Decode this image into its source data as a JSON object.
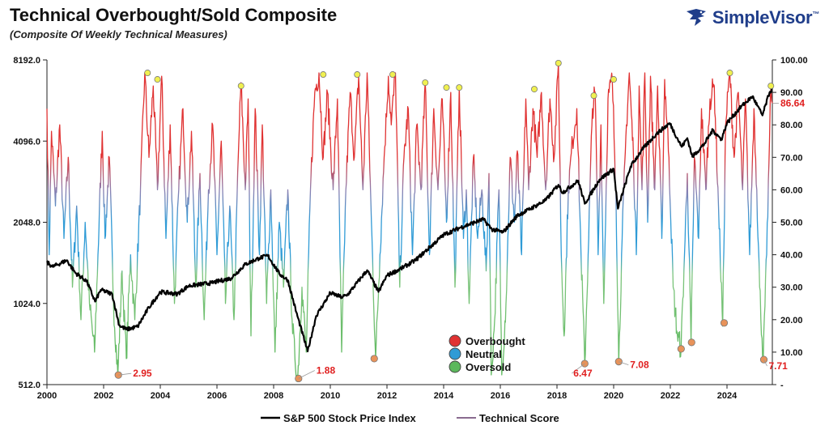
{
  "header": {
    "title": "Technical Overbought/Sold Composite",
    "subtitle": "(Composite Of Weekly Technical Measures)",
    "brand": "SimpleVisor",
    "brand_mark": "™"
  },
  "colors": {
    "overbought": "#e03232",
    "neutral": "#2f9bd6",
    "oversold": "#5cb85c",
    "sp500": "#000000",
    "peak_marker": "#f0f050",
    "trough_marker": "#e8935a",
    "callout_text": "#e02020",
    "brand": "#1f3d8a"
  },
  "chart_data": {
    "type": "line",
    "x_ticks": [
      "2000",
      "2002",
      "2004",
      "2006",
      "2008",
      "2010",
      "2012",
      "2014",
      "2016",
      "2018",
      "2020",
      "2022",
      "2024"
    ],
    "x_range": [
      2000,
      2025.6
    ],
    "y_left": {
      "label": "S&P 500 Stock Price Index",
      "scale": "log2",
      "ticks": [
        "512.0",
        "1024.0",
        "2048.0",
        "4096.0",
        "8192.0"
      ],
      "range": [
        512,
        8192
      ]
    },
    "y_right": {
      "label": "Technical Score",
      "ticks": [
        "-",
        "10.00",
        "20.00",
        "30.00",
        "40.00",
        "50.00",
        "60.00",
        "70.00",
        "80.00",
        "90.00",
        "100.00"
      ],
      "range": [
        0,
        100
      ]
    },
    "grid": false,
    "legend": {
      "position": "bottom-center",
      "items": [
        "S&P 500 Stock Price Index",
        "Technical Score"
      ]
    },
    "zone_legend": {
      "position": "center-bottom",
      "items": [
        {
          "label": "Overbought",
          "color": "#e03232"
        },
        {
          "label": "Neutral",
          "color": "#2f9bd6"
        },
        {
          "label": "Oversold",
          "color": "#5cb85c"
        }
      ]
    },
    "sp500_anchors": [
      [
        2000.0,
        1455
      ],
      [
        2000.2,
        1400
      ],
      [
        2000.7,
        1480
      ],
      [
        2001.0,
        1330
      ],
      [
        2001.4,
        1240
      ],
      [
        2001.7,
        1040
      ],
      [
        2001.9,
        1150
      ],
      [
        2002.3,
        1110
      ],
      [
        2002.55,
        850
      ],
      [
        2002.8,
        820
      ],
      [
        2003.2,
        840
      ],
      [
        2003.6,
        990
      ],
      [
        2004.0,
        1130
      ],
      [
        2004.6,
        1110
      ],
      [
        2005.0,
        1190
      ],
      [
        2005.8,
        1220
      ],
      [
        2006.5,
        1270
      ],
      [
        2007.0,
        1430
      ],
      [
        2007.5,
        1510
      ],
      [
        2007.8,
        1540
      ],
      [
        2008.2,
        1320
      ],
      [
        2008.5,
        1250
      ],
      [
        2008.8,
        950
      ],
      [
        2009.2,
        680
      ],
      [
        2009.5,
        920
      ],
      [
        2010.0,
        1120
      ],
      [
        2010.4,
        1080
      ],
      [
        2010.6,
        1100
      ],
      [
        2011.3,
        1360
      ],
      [
        2011.7,
        1130
      ],
      [
        2012.0,
        1300
      ],
      [
        2012.5,
        1380
      ],
      [
        2013.0,
        1480
      ],
      [
        2013.5,
        1650
      ],
      [
        2014.0,
        1840
      ],
      [
        2014.6,
        1960
      ],
      [
        2015.4,
        2100
      ],
      [
        2015.7,
        1930
      ],
      [
        2016.1,
        1880
      ],
      [
        2016.6,
        2170
      ],
      [
        2017.0,
        2280
      ],
      [
        2017.6,
        2470
      ],
      [
        2018.05,
        2820
      ],
      [
        2018.2,
        2640
      ],
      [
        2018.75,
        2920
      ],
      [
        2018.98,
        2400
      ],
      [
        2019.5,
        2950
      ],
      [
        2020.0,
        3230
      ],
      [
        2020.15,
        2300
      ],
      [
        2020.6,
        3300
      ],
      [
        2021.0,
        3800
      ],
      [
        2021.5,
        4350
      ],
      [
        2021.98,
        4770
      ],
      [
        2022.4,
        3900
      ],
      [
        2022.6,
        4200
      ],
      [
        2022.78,
        3580
      ],
      [
        2023.2,
        4000
      ],
      [
        2023.5,
        4500
      ],
      [
        2023.8,
        4150
      ],
      [
        2024.0,
        4780
      ],
      [
        2024.5,
        5500
      ],
      [
        2024.9,
        6000
      ],
      [
        2025.25,
        5100
      ],
      [
        2025.5,
        6200
      ],
      [
        2025.6,
        6400
      ]
    ],
    "technical_score_anchors": [
      [
        2000.0,
        85
      ],
      [
        2000.08,
        40
      ],
      [
        2000.16,
        78
      ],
      [
        2000.3,
        55
      ],
      [
        2000.45,
        80
      ],
      [
        2000.6,
        45
      ],
      [
        2000.75,
        70
      ],
      [
        2000.9,
        30
      ],
      [
        2001.05,
        55
      ],
      [
        2001.2,
        20
      ],
      [
        2001.35,
        50
      ],
      [
        2001.5,
        25
      ],
      [
        2001.68,
        10
      ],
      [
        2001.8,
        40
      ],
      [
        2001.95,
        78
      ],
      [
        2002.05,
        45
      ],
      [
        2002.2,
        70
      ],
      [
        2002.35,
        25
      ],
      [
        2002.5,
        2.95
      ],
      [
        2002.65,
        35
      ],
      [
        2002.8,
        8
      ],
      [
        2002.95,
        40
      ],
      [
        2003.1,
        20
      ],
      [
        2003.3,
        60
      ],
      [
        2003.45,
        96
      ],
      [
        2003.6,
        70
      ],
      [
        2003.75,
        92
      ],
      [
        2003.9,
        60
      ],
      [
        2004.05,
        95
      ],
      [
        2004.2,
        45
      ],
      [
        2004.35,
        80
      ],
      [
        2004.5,
        25
      ],
      [
        2004.65,
        60
      ],
      [
        2004.8,
        85
      ],
      [
        2004.95,
        50
      ],
      [
        2005.1,
        78
      ],
      [
        2005.25,
        30
      ],
      [
        2005.4,
        65
      ],
      [
        2005.55,
        20
      ],
      [
        2005.7,
        60
      ],
      [
        2005.85,
        80
      ],
      [
        2006.0,
        40
      ],
      [
        2006.15,
        75
      ],
      [
        2006.3,
        25
      ],
      [
        2006.45,
        55
      ],
      [
        2006.6,
        20
      ],
      [
        2006.75,
        70
      ],
      [
        2006.85,
        93
      ],
      [
        2007.0,
        60
      ],
      [
        2007.1,
        88
      ],
      [
        2007.2,
        15
      ],
      [
        2007.35,
        85
      ],
      [
        2007.5,
        40
      ],
      [
        2007.6,
        80
      ],
      [
        2007.75,
        25
      ],
      [
        2007.9,
        60
      ],
      [
        2008.05,
        10
      ],
      [
        2008.2,
        50
      ],
      [
        2008.35,
        30
      ],
      [
        2008.5,
        60
      ],
      [
        2008.65,
        20
      ],
      [
        2008.75,
        8
      ],
      [
        2008.85,
        1.88
      ],
      [
        2009.0,
        30
      ],
      [
        2009.15,
        10
      ],
      [
        2009.3,
        60
      ],
      [
        2009.45,
        90
      ],
      [
        2009.6,
        96
      ],
      [
        2009.75,
        70
      ],
      [
        2009.9,
        90
      ],
      [
        2010.1,
        60
      ],
      [
        2010.25,
        88
      ],
      [
        2010.4,
        10
      ],
      [
        2010.55,
        60
      ],
      [
        2010.7,
        90
      ],
      [
        2010.85,
        70
      ],
      [
        2011.0,
        95
      ],
      [
        2011.15,
        60
      ],
      [
        2011.3,
        96
      ],
      [
        2011.45,
        50
      ],
      [
        2011.6,
        8
      ],
      [
        2011.75,
        40
      ],
      [
        2011.9,
        70
      ],
      [
        2012.05,
        95
      ],
      [
        2012.15,
        80
      ],
      [
        2012.3,
        96
      ],
      [
        2012.45,
        30
      ],
      [
        2012.6,
        70
      ],
      [
        2012.75,
        85
      ],
      [
        2012.9,
        40
      ],
      [
        2013.05,
        80
      ],
      [
        2013.2,
        60
      ],
      [
        2013.35,
        93
      ],
      [
        2013.5,
        40
      ],
      [
        2013.65,
        85
      ],
      [
        2013.8,
        60
      ],
      [
        2013.95,
        88
      ],
      [
        2014.1,
        50
      ],
      [
        2014.25,
        90
      ],
      [
        2014.4,
        30
      ],
      [
        2014.55,
        92
      ],
      [
        2014.7,
        45
      ],
      [
        2014.8,
        60
      ],
      [
        2014.9,
        25
      ],
      [
        2015.05,
        70
      ],
      [
        2015.2,
        45
      ],
      [
        2015.35,
        60
      ],
      [
        2015.5,
        35
      ],
      [
        2015.6,
        65
      ],
      [
        2015.68,
        3
      ],
      [
        2015.8,
        20
      ],
      [
        2015.95,
        60
      ],
      [
        2016.05,
        3
      ],
      [
        2016.2,
        25
      ],
      [
        2016.35,
        70
      ],
      [
        2016.5,
        50
      ],
      [
        2016.6,
        72
      ],
      [
        2016.75,
        40
      ],
      [
        2016.9,
        88
      ],
      [
        2017.0,
        60
      ],
      [
        2017.15,
        85
      ],
      [
        2017.3,
        70
      ],
      [
        2017.45,
        90
      ],
      [
        2017.6,
        60
      ],
      [
        2017.75,
        88
      ],
      [
        2017.9,
        70
      ],
      [
        2018.05,
        99
      ],
      [
        2018.15,
        40
      ],
      [
        2018.25,
        15
      ],
      [
        2018.4,
        60
      ],
      [
        2018.55,
        75
      ],
      [
        2018.7,
        85
      ],
      [
        2018.85,
        40
      ],
      [
        2018.98,
        6.47
      ],
      [
        2019.1,
        40
      ],
      [
        2019.25,
        85
      ],
      [
        2019.35,
        90
      ],
      [
        2019.45,
        40
      ],
      [
        2019.55,
        80
      ],
      [
        2019.65,
        25
      ],
      [
        2019.8,
        88
      ],
      [
        2019.95,
        94
      ],
      [
        2020.08,
        60
      ],
      [
        2020.18,
        7.08
      ],
      [
        2020.3,
        45
      ],
      [
        2020.45,
        80
      ],
      [
        2020.55,
        96
      ],
      [
        2020.7,
        70
      ],
      [
        2020.8,
        40
      ],
      [
        2020.9,
        92
      ],
      [
        2021.0,
        60
      ],
      [
        2021.1,
        96
      ],
      [
        2021.2,
        50
      ],
      [
        2021.3,
        95
      ],
      [
        2021.45,
        60
      ],
      [
        2021.55,
        92
      ],
      [
        2021.7,
        45
      ],
      [
        2021.8,
        94
      ],
      [
        2021.95,
        70
      ],
      [
        2022.1,
        30
      ],
      [
        2022.25,
        15
      ],
      [
        2022.38,
        11
      ],
      [
        2022.5,
        40
      ],
      [
        2022.6,
        65
      ],
      [
        2022.73,
        13
      ],
      [
        2022.85,
        70
      ],
      [
        2023.0,
        45
      ],
      [
        2023.1,
        85
      ],
      [
        2023.25,
        60
      ],
      [
        2023.4,
        88
      ],
      [
        2023.55,
        92
      ],
      [
        2023.7,
        55
      ],
      [
        2023.85,
        18
      ],
      [
        2023.95,
        80
      ],
      [
        2024.1,
        96
      ],
      [
        2024.25,
        70
      ],
      [
        2024.4,
        90
      ],
      [
        2024.55,
        60
      ],
      [
        2024.65,
        88
      ],
      [
        2024.8,
        40
      ],
      [
        2024.95,
        85
      ],
      [
        2025.05,
        60
      ],
      [
        2025.15,
        30
      ],
      [
        2025.28,
        7.71
      ],
      [
        2025.4,
        40
      ],
      [
        2025.5,
        75
      ],
      [
        2025.55,
        92
      ],
      [
        2025.6,
        86.64
      ]
    ],
    "peak_markers": [
      [
        2003.55,
        96
      ],
      [
        2003.9,
        94
      ],
      [
        2006.85,
        92
      ],
      [
        2009.75,
        95.5
      ],
      [
        2010.95,
        95.5
      ],
      [
        2012.2,
        95.5
      ],
      [
        2013.35,
        93
      ],
      [
        2014.1,
        91.5
      ],
      [
        2014.55,
        91.5
      ],
      [
        2017.2,
        91
      ],
      [
        2018.05,
        99
      ],
      [
        2019.3,
        89
      ],
      [
        2020.0,
        94
      ],
      [
        2024.1,
        96
      ],
      [
        2025.55,
        92
      ]
    ],
    "trough_markers": [
      [
        2002.52,
        2.95
      ],
      [
        2008.88,
        1.88
      ],
      [
        2011.55,
        8
      ],
      [
        2018.98,
        6.47
      ],
      [
        2020.18,
        7.08
      ],
      [
        2022.38,
        11
      ],
      [
        2022.75,
        13
      ],
      [
        2023.9,
        19
      ],
      [
        2025.3,
        7.71
      ]
    ],
    "annotations": [
      {
        "text": "2.95",
        "x": 2002.52,
        "y": 2.95
      },
      {
        "text": "1.88",
        "x": 2008.88,
        "y": 1.88
      },
      {
        "text": "6.47",
        "x": 2018.98,
        "y": 6.47
      },
      {
        "text": "7.08",
        "x": 2020.18,
        "y": 7.08
      },
      {
        "text": "7.71",
        "x": 2025.3,
        "y": 7.71
      },
      {
        "text": "86.64",
        "x": 2025.6,
        "y": 86.64
      }
    ]
  }
}
